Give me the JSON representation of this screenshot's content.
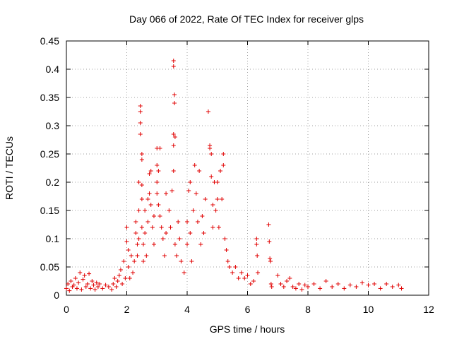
{
  "chart_data": {
    "type": "scatter",
    "title": "Day 066 of 2022, Rate Of TEC Index for receiver glps",
    "xlabel": "GPS time / hours",
    "ylabel": "ROTI / TECUs",
    "xlim": [
      0,
      12
    ],
    "ylim": [
      0,
      0.45
    ],
    "x_ticks": [
      "0",
      "2",
      "4",
      "6",
      "8",
      "10",
      "12"
    ],
    "y_ticks": [
      "0",
      "0.05",
      "0.1",
      "0.15",
      "0.2",
      "0.25",
      "0.3",
      "0.35",
      "0.4",
      "0.45"
    ],
    "grid": true,
    "marker": "+",
    "marker_color": "#e00000",
    "series": [
      {
        "points": [
          [
            0.0,
            0.012
          ],
          [
            0.05,
            0.02
          ],
          [
            0.1,
            0.008
          ],
          [
            0.15,
            0.025
          ],
          [
            0.2,
            0.015
          ],
          [
            0.25,
            0.018
          ],
          [
            0.3,
            0.03
          ],
          [
            0.35,
            0.012
          ],
          [
            0.4,
            0.022
          ],
          [
            0.45,
            0.04
          ],
          [
            0.5,
            0.01
          ],
          [
            0.55,
            0.028
          ],
          [
            0.6,
            0.035
          ],
          [
            0.65,
            0.015
          ],
          [
            0.7,
            0.02
          ],
          [
            0.75,
            0.038
          ],
          [
            0.8,
            0.012
          ],
          [
            0.85,
            0.025
          ],
          [
            0.9,
            0.018
          ],
          [
            0.95,
            0.01
          ],
          [
            1.0,
            0.022
          ],
          [
            1.05,
            0.015
          ],
          [
            1.1,
            0.02
          ],
          [
            1.2,
            0.012
          ],
          [
            1.3,
            0.018
          ],
          [
            1.4,
            0.015
          ],
          [
            1.5,
            0.01
          ],
          [
            1.55,
            0.02
          ],
          [
            1.6,
            0.03
          ],
          [
            1.65,
            0.015
          ],
          [
            1.7,
            0.025
          ],
          [
            1.75,
            0.035
          ],
          [
            1.8,
            0.045
          ],
          [
            1.85,
            0.02
          ],
          [
            1.9,
            0.06
          ],
          [
            1.95,
            0.03
          ],
          [
            2.0,
            0.12
          ],
          [
            2.0,
            0.095
          ],
          [
            2.05,
            0.08
          ],
          [
            2.05,
            0.05
          ],
          [
            2.1,
            0.03
          ],
          [
            2.15,
            0.07
          ],
          [
            2.2,
            0.04
          ],
          [
            2.25,
            0.06
          ],
          [
            2.3,
            0.13
          ],
          [
            2.3,
            0.11
          ],
          [
            2.35,
            0.09
          ],
          [
            2.35,
            0.07
          ],
          [
            2.4,
            0.2
          ],
          [
            2.4,
            0.15
          ],
          [
            2.4,
            0.1
          ],
          [
            2.45,
            0.335
          ],
          [
            2.45,
            0.325
          ],
          [
            2.45,
            0.305
          ],
          [
            2.45,
            0.285
          ],
          [
            2.5,
            0.25
          ],
          [
            2.5,
            0.24
          ],
          [
            2.5,
            0.195
          ],
          [
            2.5,
            0.17
          ],
          [
            2.5,
            0.12
          ],
          [
            2.55,
            0.09
          ],
          [
            2.55,
            0.06
          ],
          [
            2.6,
            0.15
          ],
          [
            2.6,
            0.11
          ],
          [
            2.65,
            0.07
          ],
          [
            2.7,
            0.17
          ],
          [
            2.7,
            0.13
          ],
          [
            2.75,
            0.215
          ],
          [
            2.75,
            0.18
          ],
          [
            2.8,
            0.22
          ],
          [
            2.8,
            0.16
          ],
          [
            2.85,
            0.12
          ],
          [
            2.9,
            0.14
          ],
          [
            2.9,
            0.09
          ],
          [
            3.0,
            0.26
          ],
          [
            3.0,
            0.23
          ],
          [
            3.0,
            0.2
          ],
          [
            3.0,
            0.18
          ],
          [
            3.05,
            0.22
          ],
          [
            3.05,
            0.16
          ],
          [
            3.1,
            0.26
          ],
          [
            3.1,
            0.14
          ],
          [
            3.15,
            0.12
          ],
          [
            3.2,
            0.1
          ],
          [
            3.25,
            0.07
          ],
          [
            3.3,
            0.18
          ],
          [
            3.3,
            0.11
          ],
          [
            3.4,
            0.15
          ],
          [
            3.45,
            0.12
          ],
          [
            3.5,
            0.185
          ],
          [
            3.55,
            0.415
          ],
          [
            3.55,
            0.405
          ],
          [
            3.55,
            0.285
          ],
          [
            3.55,
            0.265
          ],
          [
            3.55,
            0.22
          ],
          [
            3.58,
            0.355
          ],
          [
            3.58,
            0.34
          ],
          [
            3.6,
            0.28
          ],
          [
            3.6,
            0.09
          ],
          [
            3.65,
            0.07
          ],
          [
            3.7,
            0.13
          ],
          [
            3.75,
            0.1
          ],
          [
            3.8,
            0.06
          ],
          [
            3.9,
            0.04
          ],
          [
            4.0,
            0.13
          ],
          [
            4.0,
            0.09
          ],
          [
            4.05,
            0.185
          ],
          [
            4.1,
            0.2
          ],
          [
            4.1,
            0.11
          ],
          [
            4.15,
            0.06
          ],
          [
            4.2,
            0.15
          ],
          [
            4.25,
            0.23
          ],
          [
            4.3,
            0.18
          ],
          [
            4.35,
            0.13
          ],
          [
            4.4,
            0.22
          ],
          [
            4.45,
            0.09
          ],
          [
            4.5,
            0.14
          ],
          [
            4.55,
            0.11
          ],
          [
            4.6,
            0.17
          ],
          [
            4.7,
            0.325
          ],
          [
            4.75,
            0.265
          ],
          [
            4.75,
            0.26
          ],
          [
            4.8,
            0.25
          ],
          [
            4.8,
            0.21
          ],
          [
            4.85,
            0.16
          ],
          [
            4.85,
            0.12
          ],
          [
            4.9,
            0.2
          ],
          [
            4.95,
            0.15
          ],
          [
            5.0,
            0.2
          ],
          [
            5.0,
            0.17
          ],
          [
            5.05,
            0.12
          ],
          [
            5.1,
            0.22
          ],
          [
            5.15,
            0.17
          ],
          [
            5.2,
            0.25
          ],
          [
            5.2,
            0.23
          ],
          [
            5.25,
            0.1
          ],
          [
            5.3,
            0.08
          ],
          [
            5.35,
            0.06
          ],
          [
            5.4,
            0.05
          ],
          [
            5.5,
            0.04
          ],
          [
            5.6,
            0.05
          ],
          [
            5.7,
            0.03
          ],
          [
            5.8,
            0.04
          ],
          [
            5.9,
            0.03
          ],
          [
            6.0,
            0.035
          ],
          [
            6.1,
            0.02
          ],
          [
            6.2,
            0.025
          ],
          [
            6.3,
            0.1
          ],
          [
            6.3,
            0.09
          ],
          [
            6.32,
            0.07
          ],
          [
            6.34,
            0.04
          ],
          [
            6.7,
            0.125
          ],
          [
            6.72,
            0.095
          ],
          [
            6.74,
            0.065
          ],
          [
            6.76,
            0.06
          ],
          [
            6.78,
            0.02
          ],
          [
            6.8,
            0.015
          ],
          [
            7.0,
            0.035
          ],
          [
            7.1,
            0.02
          ],
          [
            7.2,
            0.015
          ],
          [
            7.3,
            0.025
          ],
          [
            7.4,
            0.03
          ],
          [
            7.5,
            0.015
          ],
          [
            7.6,
            0.012
          ],
          [
            7.7,
            0.02
          ],
          [
            7.8,
            0.01
          ],
          [
            7.9,
            0.018
          ],
          [
            8.0,
            0.015
          ],
          [
            8.2,
            0.02
          ],
          [
            8.4,
            0.012
          ],
          [
            8.6,
            0.025
          ],
          [
            8.8,
            0.015
          ],
          [
            9.0,
            0.02
          ],
          [
            9.2,
            0.012
          ],
          [
            9.4,
            0.018
          ],
          [
            9.6,
            0.015
          ],
          [
            9.8,
            0.022
          ],
          [
            10.0,
            0.018
          ],
          [
            10.2,
            0.02
          ],
          [
            10.4,
            0.012
          ],
          [
            10.6,
            0.02
          ],
          [
            10.8,
            0.015
          ],
          [
            11.0,
            0.018
          ],
          [
            11.1,
            0.012
          ]
        ]
      }
    ]
  }
}
